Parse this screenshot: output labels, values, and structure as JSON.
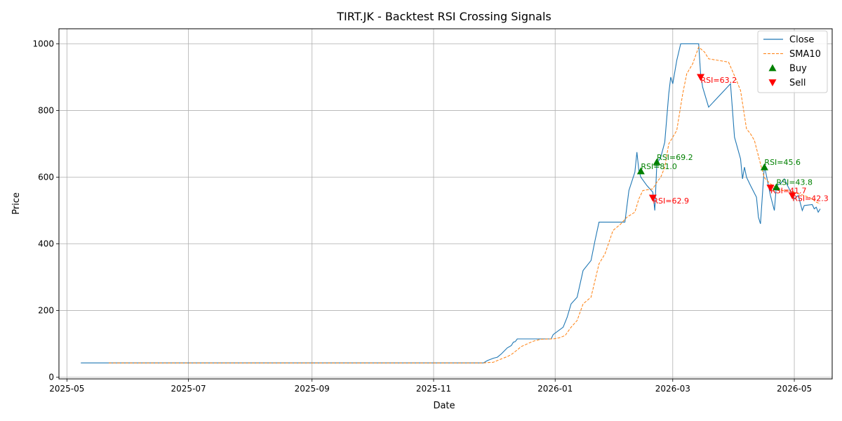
{
  "chart_data": {
    "type": "line",
    "title": "TIRT.JK - Backtest RSI Crossing Signals",
    "xlabel": "Date",
    "ylabel": "Price",
    "xlim": [
      "2025-04-27",
      "2026-05-20"
    ],
    "ylim": [
      -5,
      1045
    ],
    "grid": true,
    "legend_position": "top-right",
    "x_ticks": [
      "2025-05-01",
      "2025-07-01",
      "2025-09-01",
      "2025-11-01",
      "2026-01-01",
      "2026-03-01",
      "2026-05-01"
    ],
    "x_tick_labels": [
      "2025-05",
      "2025-07",
      "2025-09",
      "2025-11",
      "2026-01",
      "2026-03",
      "2026-05"
    ],
    "y_ticks": [
      0,
      200,
      400,
      600,
      800,
      1000
    ],
    "y_tick_labels": [
      "0",
      "200",
      "400",
      "600",
      "800",
      "1000"
    ],
    "colors": {
      "close": "#1f77b4",
      "sma": "#ff7f0e",
      "buy": "#008000",
      "sell": "#ff0000",
      "grid": "#b0b0b0"
    },
    "series": [
      {
        "name": "Close",
        "style": "solid",
        "points": [
          [
            "2025-05-08",
            43
          ],
          [
            "2025-11-26",
            43
          ],
          [
            "2025-11-28",
            50
          ],
          [
            "2025-12-01",
            57
          ],
          [
            "2025-12-03",
            60
          ],
          [
            "2025-12-05",
            70
          ],
          [
            "2025-12-08",
            88
          ],
          [
            "2025-12-10",
            95
          ],
          [
            "2025-12-11",
            105
          ],
          [
            "2025-12-12",
            107
          ],
          [
            "2025-12-13",
            115
          ],
          [
            "2025-12-30",
            115
          ],
          [
            "2025-12-31",
            128
          ],
          [
            "2026-01-05",
            150
          ],
          [
            "2026-01-07",
            180
          ],
          [
            "2026-01-09",
            220
          ],
          [
            "2026-01-12",
            240
          ],
          [
            "2026-01-15",
            320
          ],
          [
            "2026-01-19",
            350
          ],
          [
            "2026-01-21",
            410
          ],
          [
            "2026-01-23",
            465
          ],
          [
            "2026-02-05",
            465
          ],
          [
            "2026-02-07",
            560
          ],
          [
            "2026-02-10",
            615
          ],
          [
            "2026-02-11",
            675
          ],
          [
            "2026-02-12",
            620
          ],
          [
            "2026-02-13",
            600
          ],
          [
            "2026-02-16",
            575
          ],
          [
            "2026-02-19",
            555
          ],
          [
            "2026-02-20",
            500
          ],
          [
            "2026-02-21",
            640
          ],
          [
            "2026-02-23",
            660
          ],
          [
            "2026-02-25",
            705
          ],
          [
            "2026-02-27",
            850
          ],
          [
            "2026-02-28",
            900
          ],
          [
            "2026-03-01",
            880
          ],
          [
            "2026-03-03",
            950
          ],
          [
            "2026-03-05",
            1000
          ],
          [
            "2026-03-14",
            1000
          ],
          [
            "2026-03-15",
            910
          ],
          [
            "2026-03-16",
            870
          ],
          [
            "2026-03-19",
            810
          ],
          [
            "2026-03-30",
            880
          ],
          [
            "2026-04-01",
            720
          ],
          [
            "2026-04-04",
            655
          ],
          [
            "2026-04-05",
            595
          ],
          [
            "2026-04-06",
            630
          ],
          [
            "2026-04-07",
            600
          ],
          [
            "2026-04-09",
            575
          ],
          [
            "2026-04-12",
            540
          ],
          [
            "2026-04-13",
            480
          ],
          [
            "2026-04-14",
            460
          ],
          [
            "2026-04-16",
            635
          ],
          [
            "2026-04-19",
            545
          ],
          [
            "2026-04-21",
            500
          ],
          [
            "2026-04-22",
            575
          ],
          [
            "2026-04-24",
            580
          ],
          [
            "2026-04-26",
            595
          ],
          [
            "2026-04-28",
            570
          ],
          [
            "2026-04-30",
            548
          ],
          [
            "2026-05-01",
            535
          ],
          [
            "2026-05-03",
            545
          ],
          [
            "2026-05-05",
            500
          ],
          [
            "2026-05-06",
            515
          ],
          [
            "2026-05-10",
            518
          ],
          [
            "2026-05-11",
            505
          ],
          [
            "2026-05-12",
            510
          ],
          [
            "2026-05-13",
            495
          ],
          [
            "2026-05-14",
            505
          ]
        ]
      },
      {
        "name": "SMA10",
        "style": "dashed",
        "points": [
          [
            "2025-05-22",
            43
          ],
          [
            "2025-11-26",
            43
          ],
          [
            "2025-12-01",
            45
          ],
          [
            "2025-12-05",
            55
          ],
          [
            "2025-12-08",
            62
          ],
          [
            "2025-12-10",
            68
          ],
          [
            "2025-12-13",
            82
          ],
          [
            "2025-12-15",
            92
          ],
          [
            "2025-12-18",
            100
          ],
          [
            "2025-12-21",
            108
          ],
          [
            "2025-12-25",
            114
          ],
          [
            "2025-12-31",
            115
          ],
          [
            "2026-01-03",
            118
          ],
          [
            "2026-01-06",
            125
          ],
          [
            "2026-01-09",
            150
          ],
          [
            "2026-01-12",
            170
          ],
          [
            "2026-01-15",
            220
          ],
          [
            "2026-01-19",
            240
          ],
          [
            "2026-01-21",
            290
          ],
          [
            "2026-01-23",
            340
          ],
          [
            "2026-01-26",
            370
          ],
          [
            "2026-01-30",
            440
          ],
          [
            "2026-02-03",
            460
          ],
          [
            "2026-02-06",
            480
          ],
          [
            "2026-02-10",
            495
          ],
          [
            "2026-02-12",
            535
          ],
          [
            "2026-02-14",
            560
          ],
          [
            "2026-02-19",
            565
          ],
          [
            "2026-02-21",
            585
          ],
          [
            "2026-02-23",
            600
          ],
          [
            "2026-02-25",
            630
          ],
          [
            "2026-02-27",
            700
          ],
          [
            "2026-03-01",
            720
          ],
          [
            "2026-03-03",
            740
          ],
          [
            "2026-03-06",
            850
          ],
          [
            "2026-03-08",
            910
          ],
          [
            "2026-03-11",
            940
          ],
          [
            "2026-03-14",
            990
          ],
          [
            "2026-03-17",
            975
          ],
          [
            "2026-03-19",
            955
          ],
          [
            "2026-03-29",
            945
          ],
          [
            "2026-04-02",
            890
          ],
          [
            "2026-04-04",
            860
          ],
          [
            "2026-04-07",
            745
          ],
          [
            "2026-04-09",
            730
          ],
          [
            "2026-04-11",
            710
          ],
          [
            "2026-04-14",
            640
          ],
          [
            "2026-04-16",
            598
          ],
          [
            "2026-04-19",
            580
          ],
          [
            "2026-04-22",
            568
          ],
          [
            "2026-04-25",
            560
          ],
          [
            "2026-04-28",
            560
          ],
          [
            "2026-05-02",
            552
          ],
          [
            "2026-05-06",
            545
          ],
          [
            "2026-05-10",
            535
          ],
          [
            "2026-05-12",
            525
          ],
          [
            "2026-05-14",
            520
          ]
        ]
      }
    ],
    "markers": [
      {
        "type": "buy",
        "date": "2026-02-13",
        "price": 618,
        "label": "RSI=81.0"
      },
      {
        "type": "buy",
        "date": "2026-02-21",
        "price": 645,
        "label": "RSI=69.2"
      },
      {
        "type": "sell",
        "date": "2026-02-19",
        "price": 538,
        "label": "RSI=62.9"
      },
      {
        "type": "sell",
        "date": "2026-03-15",
        "price": 900,
        "label": "RSI=63.2"
      },
      {
        "type": "buy",
        "date": "2026-04-16",
        "price": 630,
        "label": "RSI=45.6"
      },
      {
        "type": "sell",
        "date": "2026-04-19",
        "price": 568,
        "label": "RSI=41.7"
      },
      {
        "type": "buy",
        "date": "2026-04-22",
        "price": 570,
        "label": "RSI=43.8"
      },
      {
        "type": "sell",
        "date": "2026-04-30",
        "price": 545,
        "label": "RSI=42.3"
      }
    ],
    "legend": [
      {
        "key": "close",
        "label": "Close"
      },
      {
        "key": "sma",
        "label": "SMA10"
      },
      {
        "key": "buy",
        "label": "Buy"
      },
      {
        "key": "sell",
        "label": "Sell"
      }
    ]
  }
}
